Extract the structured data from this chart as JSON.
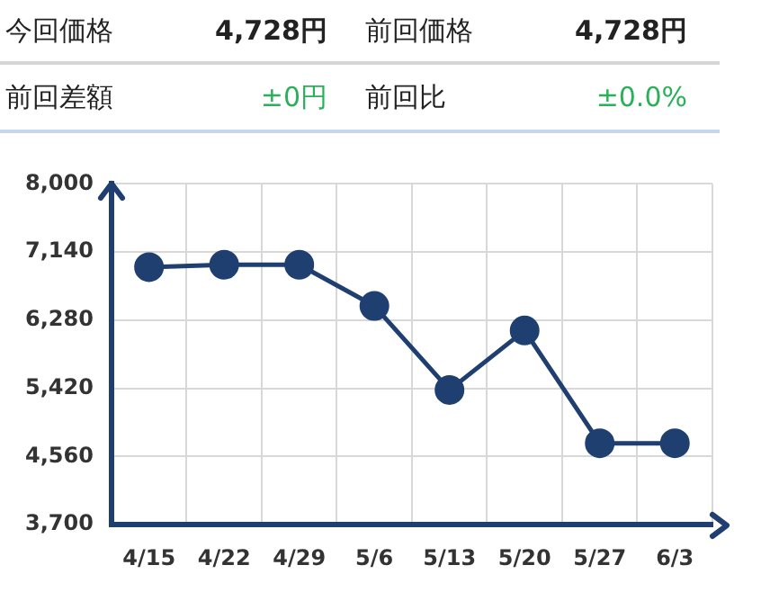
{
  "chart_data": {
    "type": "line",
    "categories": [
      "4/15",
      "4/22",
      "4/29",
      "5/6",
      "5/13",
      "5/20",
      "5/27",
      "6/3"
    ],
    "series": [
      {
        "color": "#1f3f70",
        "values": [
          6950,
          6980,
          6980,
          6460,
          5400,
          6150,
          4728,
          4728
        ]
      }
    ],
    "ylim": [
      3700,
      8000
    ],
    "yticks": [
      {
        "value": 3700,
        "label": "3,700"
      },
      {
        "value": 4560,
        "label": "4,560"
      },
      {
        "value": 5420,
        "label": "5,420"
      },
      {
        "value": 6280,
        "label": "6,280"
      },
      {
        "value": 7140,
        "label": "7,140"
      },
      {
        "value": 8000,
        "label": "8,000"
      }
    ],
    "grid": true,
    "legend": false,
    "marker": "circle",
    "line_style": "solid",
    "annotations": [
      "今回価格",
      "4,728円",
      "前回価格",
      "4,728円",
      "前回差額",
      "±0円",
      "前回比",
      "±0.0%"
    ]
  }
}
